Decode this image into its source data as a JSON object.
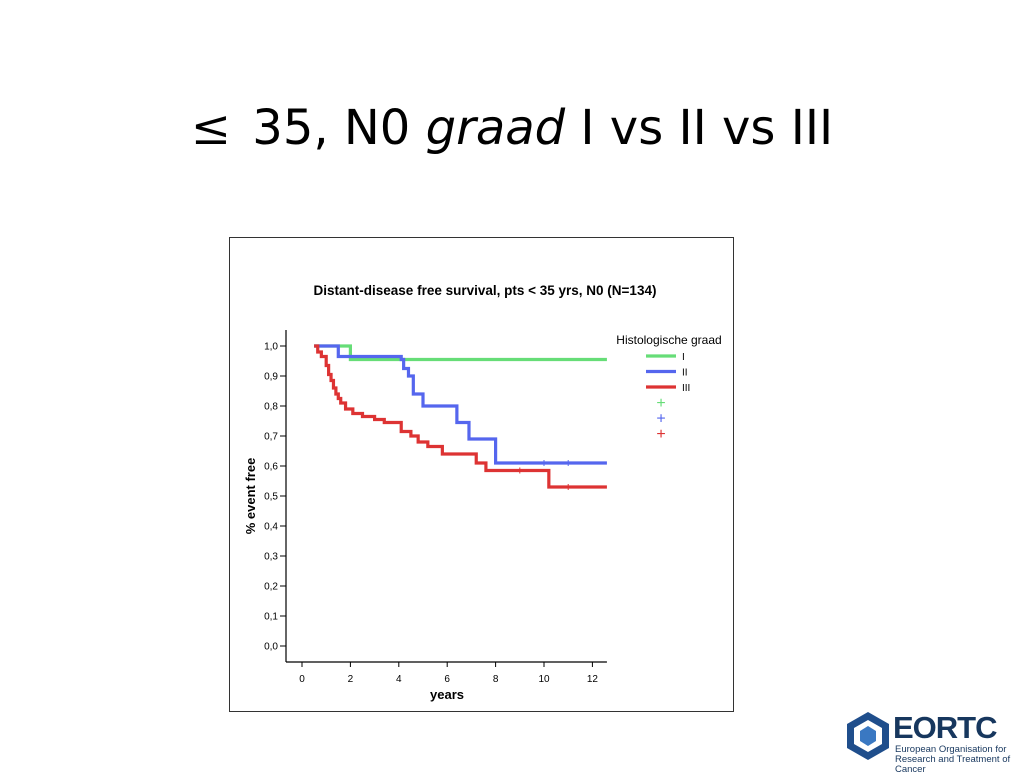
{
  "slide": {
    "title_symbol": "≤",
    "title_main": " 35, N0 ",
    "title_italic": "graad",
    "title_rest": " I vs II vs III"
  },
  "logo": {
    "name": "EORTC",
    "subtitle": "European Organisation for Research and Treatment of Cancer"
  },
  "chart_data": {
    "type": "line",
    "step": true,
    "title": "Distant-disease free survival, pts < 35 yrs, N0 (N=134)",
    "xlabel": "years",
    "ylabel": "% event free",
    "xlim": [
      0,
      12.6
    ],
    "ylim": [
      0,
      1.0
    ],
    "xticks": [
      "0",
      "2",
      "4",
      "6",
      "8",
      "10",
      "12"
    ],
    "xtick_values": [
      0,
      2,
      4,
      6,
      8,
      10,
      12
    ],
    "yticks": [
      "0,0",
      "0,1",
      "0,2",
      "0,3",
      "0,4",
      "0,5",
      "0,6",
      "0,7",
      "0,8",
      "0,9",
      "1,0"
    ],
    "ytick_values": [
      0,
      0.1,
      0.2,
      0.3,
      0.4,
      0.5,
      0.6,
      0.7,
      0.8,
      0.9,
      1.0
    ],
    "grid": false,
    "legend_title": "Histologische graad",
    "legend_position": "top-right",
    "series": [
      {
        "name": "I",
        "color": "#66dd77",
        "x": [
          0.5,
          1.5,
          2.0,
          12.6
        ],
        "y": [
          1.0,
          1.0,
          0.955,
          0.955
        ]
      },
      {
        "name": "II",
        "color": "#5566ee",
        "x": [
          0.5,
          1.5,
          4.1,
          4.2,
          4.4,
          4.6,
          5.0,
          6.4,
          6.9,
          8.0,
          12.6
        ],
        "y": [
          1.0,
          0.965,
          0.955,
          0.925,
          0.9,
          0.84,
          0.8,
          0.745,
          0.69,
          0.61,
          0.61
        ],
        "censor": [
          10.0,
          11.0
        ]
      },
      {
        "name": "III",
        "color": "#dd3333",
        "x": [
          0.5,
          0.65,
          0.8,
          1.0,
          1.1,
          1.2,
          1.3,
          1.4,
          1.5,
          1.6,
          1.8,
          2.1,
          2.5,
          3.0,
          3.4,
          4.1,
          4.5,
          4.8,
          5.2,
          5.8,
          7.2,
          7.6,
          9.2,
          10.2,
          12.6
        ],
        "y": [
          1.0,
          0.98,
          0.965,
          0.935,
          0.905,
          0.885,
          0.86,
          0.84,
          0.825,
          0.81,
          0.79,
          0.775,
          0.765,
          0.755,
          0.745,
          0.715,
          0.7,
          0.68,
          0.665,
          0.64,
          0.61,
          0.585,
          0.585,
          0.53,
          0.53
        ],
        "censor": [
          9.0,
          11.0
        ]
      }
    ],
    "censor_legend": [
      "+",
      "+",
      "+"
    ]
  }
}
